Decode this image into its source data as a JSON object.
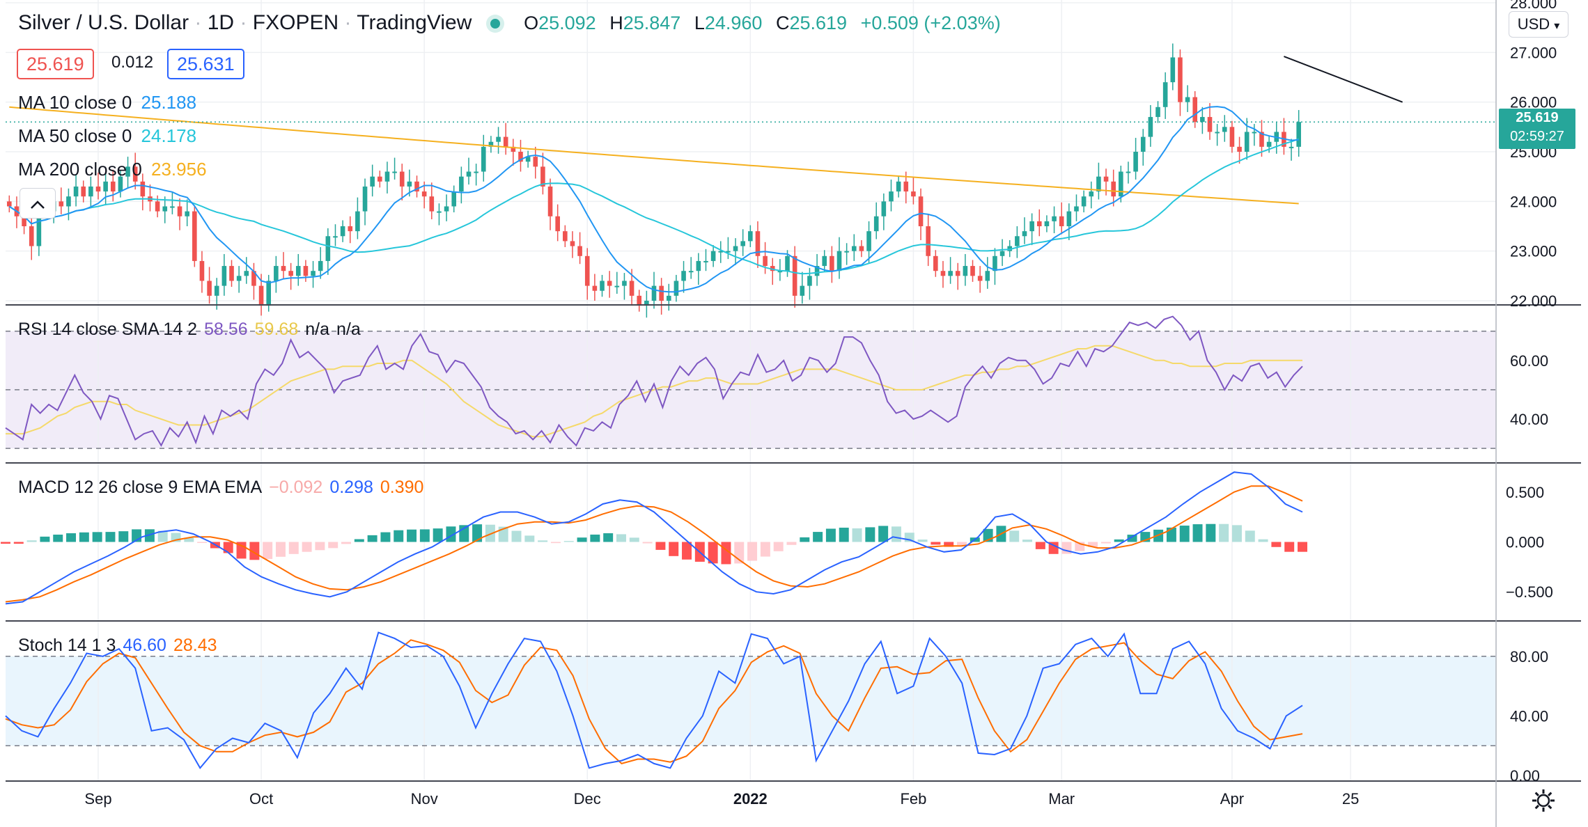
{
  "header": {
    "symbol": "Silver / U.S. Dollar",
    "interval": "1D",
    "exchange": "FXOPEN",
    "source": "TradingView",
    "sep": "·",
    "open_label": "O",
    "open": "25.092",
    "high_label": "H",
    "high": "25.847",
    "low_label": "L",
    "low": "24.960",
    "close_label": "C",
    "close": "25.619",
    "change": "+0.509 (+2.03%)"
  },
  "prices": {
    "sell": "25.619",
    "spread": "0.012",
    "buy": "25.631"
  },
  "currency": "USD",
  "collapse_icon": "chevron-up-icon",
  "last_price": {
    "value": "25.619",
    "countdown": "02:59:27"
  },
  "ma": [
    {
      "label": "MA 10 close 0",
      "value": "25.188",
      "color": "#2196f3"
    },
    {
      "label": "MA 50 close 0",
      "value": "24.178",
      "color": "#26c6da"
    },
    {
      "label": "MA 200 close 0",
      "value": "23.956",
      "color": "#f5b01f"
    }
  ],
  "rsi_legend": {
    "label": "RSI 14 close SMA 14 2",
    "v1": "58.56",
    "v2": "59.68",
    "v3": "n/a",
    "v4": "n/a"
  },
  "macd_legend": {
    "label": "MACD 12 26 close 9 EMA EMA",
    "v1": "−0.092",
    "v2": "0.298",
    "v3": "0.390"
  },
  "stoch_legend": {
    "label": "Stoch 14 1 3",
    "v1": "46.60",
    "v2": "28.43"
  },
  "colors": {
    "up": "#26a69a",
    "down": "#ef5350",
    "rsi": "#7e57c2",
    "rsi_ma": "#f5d96a",
    "macd": "#2962ff",
    "signal": "#ff6d00",
    "k": "#2962ff",
    "d": "#ff6d00",
    "trend": "#131722"
  },
  "chart_data": [
    {
      "type": "candlestick",
      "title": "Silver / U.S. Dollar · 1D · FXOPEN",
      "ylim": [
        22.0,
        28.0
      ],
      "y_ticks": [
        "28.000",
        "27.000",
        "26.000",
        "25.000",
        "24.000",
        "23.000",
        "22.000"
      ],
      "x_ticks": [
        {
          "label": "Sep",
          "i": 12
        },
        {
          "label": "Oct",
          "i": 34
        },
        {
          "label": "Nov",
          "i": 56
        },
        {
          "label": "Dec",
          "i": 78
        },
        {
          "label": "2022",
          "i": 100
        },
        {
          "label": "Feb",
          "i": 122
        },
        {
          "label": "Mar",
          "i": 142
        },
        {
          "label": "Apr",
          "i": 165
        },
        {
          "label": "25",
          "i": 181
        }
      ],
      "close": [
        23.9,
        23.7,
        23.5,
        23.1,
        23.8,
        23.8,
        24.0,
        23.9,
        24.1,
        24.3,
        24.1,
        24.3,
        24.2,
        24.4,
        24.2,
        24.5,
        24.7,
        24.4,
        24.1,
        24.0,
        23.8,
        23.9,
        23.9,
        23.7,
        23.8,
        22.8,
        22.4,
        22.1,
        22.3,
        22.7,
        22.4,
        22.5,
        22.6,
        22.3,
        21.9,
        22.4,
        22.7,
        22.6,
        22.5,
        22.7,
        22.5,
        22.6,
        22.8,
        23.3,
        23.3,
        23.5,
        23.4,
        23.8,
        24.3,
        24.5,
        24.4,
        24.6,
        24.6,
        24.3,
        24.4,
        24.2,
        24.1,
        23.8,
        23.8,
        23.9,
        24.2,
        24.5,
        24.6,
        24.6,
        25.1,
        25.2,
        25.3,
        25.1,
        25.0,
        24.8,
        24.9,
        24.7,
        24.3,
        23.7,
        23.4,
        23.2,
        23.1,
        22.9,
        22.3,
        22.2,
        22.4,
        22.3,
        22.3,
        22.4,
        22.1,
        21.9,
        22.0,
        22.3,
        22.0,
        22.1,
        22.4,
        22.6,
        22.6,
        22.8,
        22.8,
        23.0,
        23.0,
        23.0,
        23.1,
        23.2,
        23.4,
        22.9,
        22.7,
        22.6,
        22.6,
        22.9,
        22.1,
        22.3,
        22.5,
        22.7,
        22.9,
        22.6,
        23.0,
        23.0,
        23.1,
        23.0,
        23.4,
        23.7,
        24.0,
        24.2,
        24.4,
        24.2,
        24.1,
        23.5,
        22.9,
        22.6,
        22.5,
        22.6,
        22.5,
        22.7,
        22.5,
        22.4,
        22.6,
        22.9,
        23.0,
        23.1,
        23.3,
        23.4,
        23.6,
        23.5,
        23.6,
        23.7,
        23.5,
        23.8,
        23.9,
        24.1,
        24.2,
        24.5,
        24.4,
        24.1,
        24.6,
        24.6,
        25.0,
        25.3,
        25.7,
        25.9,
        26.4,
        26.9,
        26.0,
        26.1,
        25.6,
        25.7,
        25.4,
        25.4,
        25.5,
        25.1,
        25.0,
        25.4,
        25.4,
        25.1,
        25.2,
        25.4,
        25.1,
        25.1,
        25.6
      ],
      "ma10_last": 25.188,
      "ma50_last": 24.178,
      "ma200_last": 23.956,
      "trendline": [
        {
          "i": 172,
          "y": 26.92
        },
        {
          "i": 188,
          "y": 26.0
        }
      ]
    },
    {
      "type": "line",
      "name": "RSI 14",
      "ylim": [
        26,
        78
      ],
      "y_ticks": [
        "60.00",
        "40.00"
      ],
      "band": [
        30,
        70
      ],
      "mid": 50,
      "rsi": [
        37,
        35,
        33,
        45,
        42,
        45,
        43,
        49,
        55,
        49,
        46,
        40,
        48,
        47,
        40,
        33,
        35,
        36,
        31,
        37,
        34,
        39,
        32,
        41,
        35,
        43,
        41,
        43,
        40,
        52,
        57,
        55,
        59,
        67,
        61,
        63,
        60,
        57,
        49,
        53,
        54,
        55,
        61,
        65,
        57,
        59,
        57,
        65,
        69,
        63,
        62,
        56,
        60,
        59,
        55,
        51,
        44,
        41,
        39,
        35,
        36,
        33,
        36,
        32,
        38,
        34,
        31,
        37,
        36,
        39,
        37,
        45,
        48,
        53,
        46,
        52,
        44,
        53,
        58,
        55,
        59,
        61,
        57,
        47,
        52,
        56,
        55,
        62,
        56,
        57,
        60,
        53,
        55,
        61,
        60,
        56,
        59,
        68,
        68,
        66,
        60,
        55,
        46,
        42,
        43,
        40,
        41,
        43,
        41,
        39,
        41,
        51,
        55,
        58,
        54,
        59,
        61,
        60,
        60,
        57,
        52,
        54,
        59,
        58,
        63,
        58,
        64,
        63,
        65,
        69,
        73,
        72,
        73,
        71,
        74,
        75,
        72,
        67,
        70,
        60,
        56,
        50,
        55,
        53,
        58,
        59,
        54,
        56,
        51,
        55,
        58
      ],
      "rsi_ma": [
        35,
        35,
        35,
        36,
        37,
        39,
        41,
        42,
        44,
        45,
        46,
        46,
        46,
        45,
        45,
        43,
        42,
        41,
        40,
        39,
        38,
        38,
        38,
        38,
        39,
        40,
        41,
        42,
        43,
        45,
        47,
        49,
        51,
        53,
        54,
        55,
        56,
        57,
        57,
        58,
        58,
        58,
        58,
        59,
        59,
        59,
        60,
        60,
        58,
        56,
        54,
        52,
        49,
        46,
        44,
        42,
        40,
        38,
        37,
        36,
        35,
        34,
        34,
        35,
        36,
        37,
        38,
        39,
        41,
        42,
        44,
        46,
        47,
        48,
        49,
        50,
        51,
        51,
        52,
        53,
        53,
        54,
        54,
        53,
        52,
        52,
        52,
        52,
        53,
        54,
        55,
        56,
        57,
        57,
        57,
        57,
        57,
        56,
        55,
        54,
        53,
        52,
        51,
        50,
        50,
        50,
        50,
        51,
        52,
        53,
        54,
        55,
        55,
        56,
        56,
        57,
        57,
        58,
        58,
        59,
        60,
        61,
        62,
        63,
        64,
        64,
        65,
        65,
        65,
        64,
        63,
        62,
        61,
        60,
        60,
        59,
        59,
        58,
        58,
        58,
        58,
        59,
        59,
        59,
        60,
        60,
        60,
        60,
        60,
        60,
        60
      ]
    },
    {
      "type": "line",
      "name": "MACD 12 26 9",
      "ylim": [
        -0.75,
        0.75
      ],
      "y_ticks": [
        "0.500",
        "0.000",
        "−0.500"
      ],
      "macd": [
        -0.62,
        -0.6,
        -0.5,
        -0.4,
        -0.3,
        -0.22,
        -0.14,
        -0.05,
        0.05,
        0.1,
        0.12,
        0.08,
        0.0,
        -0.1,
        -0.25,
        -0.35,
        -0.42,
        -0.48,
        -0.52,
        -0.55,
        -0.5,
        -0.4,
        -0.3,
        -0.2,
        -0.12,
        -0.05,
        0.05,
        0.15,
        0.25,
        0.3,
        0.3,
        0.25,
        0.18,
        0.2,
        0.28,
        0.38,
        0.42,
        0.4,
        0.3,
        0.15,
        0.0,
        -0.15,
        -0.3,
        -0.42,
        -0.5,
        -0.52,
        -0.48,
        -0.38,
        -0.28,
        -0.2,
        -0.15,
        -0.05,
        0.05,
        0.02,
        -0.05,
        -0.1,
        -0.08,
        0.05,
        0.25,
        0.28,
        0.18,
        0.0,
        -0.08,
        -0.12,
        -0.1,
        -0.05,
        0.05,
        0.15,
        0.25,
        0.38,
        0.5,
        0.6,
        0.7,
        0.68,
        0.55,
        0.38,
        0.3
      ],
      "signal": [
        -0.6,
        -0.58,
        -0.55,
        -0.48,
        -0.4,
        -0.33,
        -0.25,
        -0.17,
        -0.1,
        -0.03,
        0.02,
        0.05,
        0.05,
        0.02,
        -0.05,
        -0.15,
        -0.25,
        -0.35,
        -0.42,
        -0.47,
        -0.48,
        -0.45,
        -0.4,
        -0.33,
        -0.26,
        -0.19,
        -0.12,
        -0.04,
        0.05,
        0.12,
        0.18,
        0.2,
        0.2,
        0.19,
        0.22,
        0.28,
        0.33,
        0.36,
        0.35,
        0.3,
        0.2,
        0.08,
        -0.05,
        -0.18,
        -0.3,
        -0.39,
        -0.44,
        -0.45,
        -0.42,
        -0.36,
        -0.3,
        -0.22,
        -0.14,
        -0.08,
        -0.05,
        -0.04,
        -0.04,
        -0.02,
        0.05,
        0.14,
        0.17,
        0.13,
        0.06,
        -0.02,
        -0.06,
        -0.06,
        -0.03,
        0.03,
        0.1,
        0.2,
        0.3,
        0.4,
        0.5,
        0.56,
        0.56,
        0.49,
        0.41
      ]
    },
    {
      "type": "line",
      "name": "Stoch 14 1 3",
      "ylim": [
        0,
        100
      ],
      "y_ticks": [
        "80.00",
        "40.00",
        "0.00"
      ],
      "band": [
        20,
        80
      ],
      "k": [
        40,
        30,
        26,
        45,
        62,
        82,
        80,
        85,
        72,
        30,
        32,
        24,
        5,
        18,
        25,
        22,
        35,
        30,
        12,
        42,
        55,
        72,
        58,
        96,
        92,
        86,
        87,
        80,
        60,
        32,
        55,
        75,
        92,
        90,
        70,
        40,
        5,
        8,
        10,
        14,
        8,
        5,
        25,
        40,
        70,
        62,
        95,
        92,
        75,
        80,
        10,
        30,
        50,
        75,
        90,
        55,
        60,
        92,
        80,
        62,
        15,
        14,
        18,
        40,
        72,
        75,
        88,
        92,
        80,
        95,
        55,
        55,
        85,
        90,
        75,
        45,
        30,
        25,
        18,
        40,
        47
      ],
      "d": [
        38,
        34,
        32,
        34,
        44,
        63,
        75,
        82,
        79,
        62,
        45,
        29,
        20,
        16,
        16,
        22,
        27,
        29,
        26,
        29,
        36,
        56,
        62,
        75,
        82,
        91,
        88,
        84,
        76,
        57,
        49,
        54,
        74,
        86,
        84,
        67,
        38,
        18,
        8,
        11,
        11,
        9,
        13,
        23,
        45,
        57,
        76,
        83,
        87,
        82,
        55,
        40,
        30,
        52,
        72,
        73,
        68,
        69,
        77,
        78,
        52,
        30,
        16,
        24,
        43,
        62,
        78,
        85,
        87,
        89,
        77,
        68,
        65,
        77,
        83,
        70,
        50,
        33,
        24,
        26,
        28
      ]
    }
  ]
}
